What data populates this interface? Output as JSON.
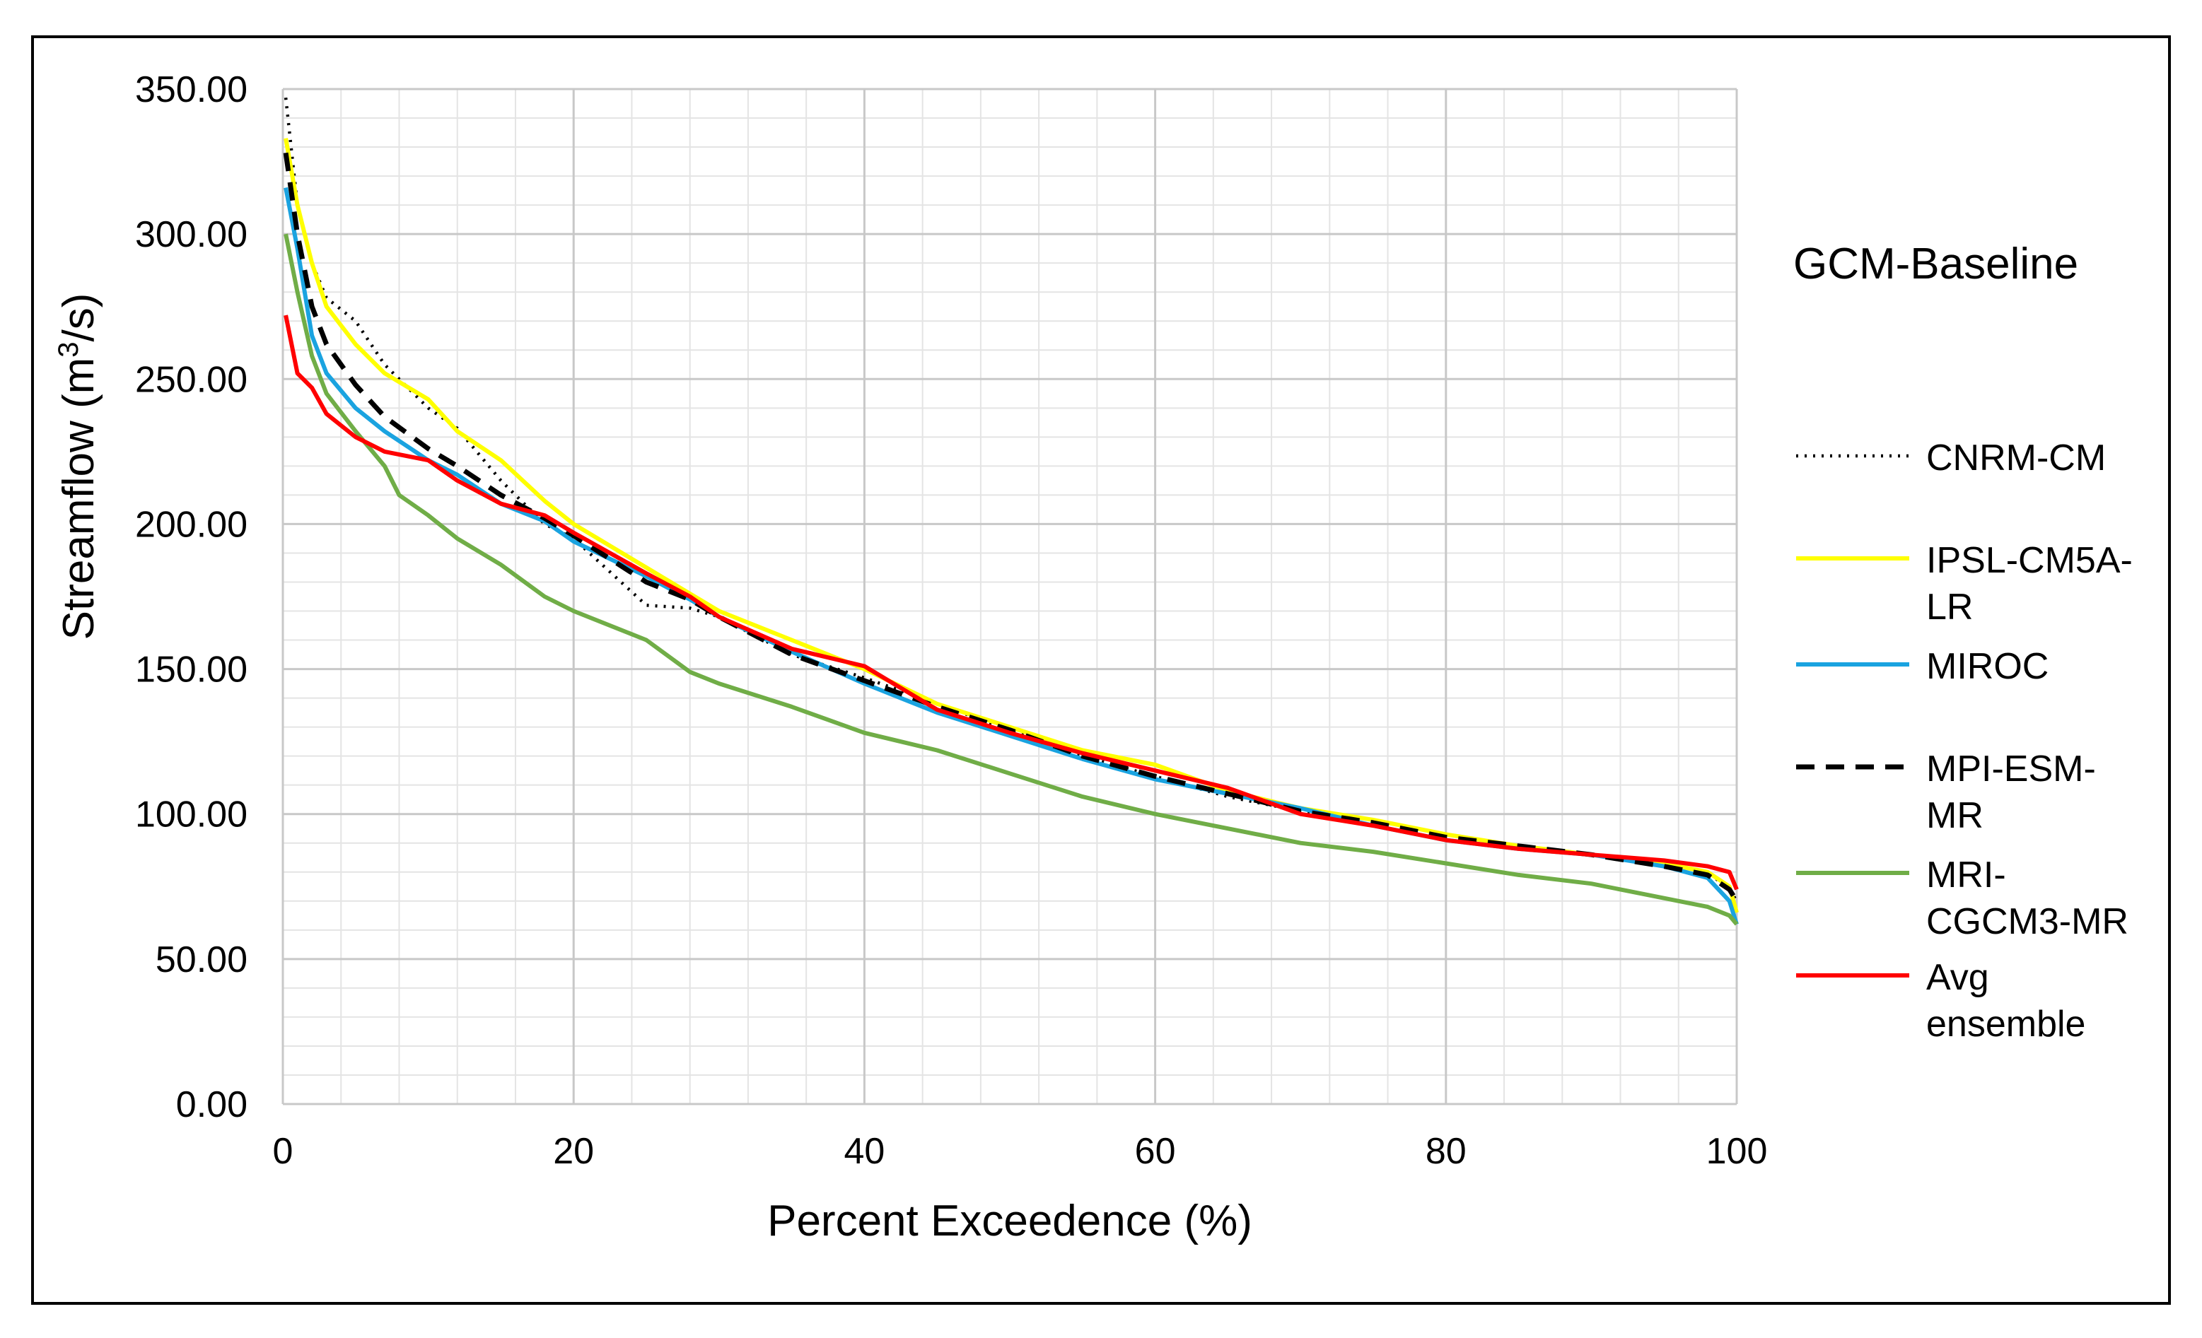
{
  "chart_data": {
    "type": "line",
    "title": "",
    "legend_title": "GCM-Baseline",
    "xlabel": "Percent Exceedence (%)",
    "ylabel_main": "Streamflow (m",
    "ylabel_sup": "3",
    "ylabel_tail": "/s)",
    "xlim": [
      0,
      100
    ],
    "ylim": [
      0,
      350
    ],
    "x_ticks": [
      0,
      20,
      40,
      60,
      80,
      100
    ],
    "x_tick_labels": [
      "0",
      "20",
      "40",
      "60",
      "80",
      "100"
    ],
    "y_ticks": [
      0,
      50,
      100,
      150,
      200,
      250,
      300,
      350
    ],
    "y_tick_labels": [
      "0.00",
      "50.00",
      "100.00",
      "150.00",
      "200.00",
      "250.00",
      "300.00",
      "350.00"
    ],
    "grid": true,
    "legend_position": "right",
    "series": [
      {
        "name": "CNRM-CM",
        "legend_lines": [
          "CNRM-CM"
        ],
        "color": "#000000",
        "dash": "dotted",
        "x": [
          0.2,
          1,
          2,
          3,
          5,
          7,
          10,
          12,
          15,
          18,
          20,
          25,
          28,
          30,
          35,
          40,
          45,
          50,
          55,
          60,
          65,
          70,
          75,
          80,
          85,
          90,
          95,
          98,
          99.5,
          100
        ],
        "values": [
          347,
          310,
          290,
          278,
          270,
          255,
          240,
          233,
          215,
          200,
          195,
          172,
          171,
          168,
          155,
          147,
          138,
          129,
          120,
          113,
          106,
          101,
          96,
          91,
          89,
          86,
          83,
          80,
          74,
          70
        ]
      },
      {
        "name": "IPSL-CM5A-LR",
        "legend_lines": [
          "IPSL-CM5A-",
          "LR"
        ],
        "color": "#ffff00",
        "dash": "solid",
        "x": [
          0.2,
          1,
          2,
          3,
          5,
          7,
          10,
          12,
          15,
          18,
          20,
          25,
          28,
          30,
          35,
          40,
          45,
          50,
          55,
          60,
          65,
          70,
          75,
          80,
          85,
          90,
          95,
          98,
          99.5,
          100
        ],
        "values": [
          333,
          310,
          290,
          275,
          262,
          252,
          243,
          232,
          222,
          208,
          200,
          185,
          176,
          170,
          160,
          150,
          138,
          130,
          122,
          117,
          108,
          102,
          98,
          93,
          89,
          86,
          83,
          80,
          75,
          66
        ]
      },
      {
        "name": "MIROC",
        "legend_lines": [
          "MIROC"
        ],
        "color": "#1aa3e0",
        "dash": "solid",
        "x": [
          0.2,
          1,
          2,
          3,
          5,
          7,
          10,
          12,
          15,
          18,
          20,
          25,
          28,
          30,
          35,
          40,
          45,
          50,
          55,
          60,
          65,
          70,
          75,
          80,
          85,
          90,
          95,
          98,
          99.5,
          100
        ],
        "values": [
          316,
          295,
          265,
          252,
          240,
          232,
          222,
          217,
          207,
          201,
          194,
          182,
          174,
          168,
          156,
          145,
          135,
          127,
          119,
          112,
          107,
          102,
          96,
          91,
          88,
          86,
          82,
          78,
          70,
          62
        ]
      },
      {
        "name": "MPI-ESM-MR",
        "legend_lines": [
          "MPI-ESM-",
          "MR"
        ],
        "color": "#000000",
        "dash": "dashed",
        "x": [
          0.2,
          1,
          2,
          3,
          5,
          7,
          10,
          12,
          15,
          18,
          20,
          25,
          28,
          30,
          35,
          40,
          45,
          50,
          55,
          60,
          65,
          70,
          75,
          80,
          85,
          90,
          95,
          98,
          99.5,
          100
        ],
        "values": [
          328,
          300,
          275,
          262,
          248,
          237,
          226,
          220,
          210,
          202,
          196,
          180,
          174,
          168,
          155,
          146,
          137,
          129,
          120,
          113,
          107,
          101,
          97,
          92,
          89,
          86,
          82,
          79,
          74,
          70
        ]
      },
      {
        "name": "MRI-CGCM3-MR",
        "legend_lines": [
          "MRI-",
          "CGCM3-MR"
        ],
        "color": "#70ad47",
        "dash": "solid",
        "x": [
          0.2,
          1,
          2,
          3,
          5,
          7,
          8,
          10,
          12,
          15,
          18,
          20,
          25,
          28,
          30,
          35,
          40,
          45,
          50,
          55,
          60,
          65,
          70,
          75,
          80,
          85,
          90,
          95,
          98,
          99.5,
          100
        ],
        "values": [
          300,
          280,
          258,
          245,
          232,
          220,
          210,
          203,
          195,
          186,
          175,
          170,
          160,
          149,
          145,
          137,
          128,
          122,
          114,
          106,
          100,
          95,
          90,
          87,
          83,
          79,
          76,
          71,
          68,
          65,
          62
        ]
      },
      {
        "name": "Avg ensemble",
        "legend_lines": [
          "Avg",
          "ensemble"
        ],
        "color": "#ff0000",
        "dash": "solid",
        "x": [
          0.2,
          1,
          2,
          3,
          5,
          7,
          10,
          12,
          15,
          18,
          20,
          25,
          28,
          30,
          35,
          40,
          45,
          50,
          55,
          60,
          65,
          70,
          75,
          80,
          85,
          90,
          95,
          98,
          99.5,
          100
        ],
        "values": [
          272,
          252,
          247,
          238,
          230,
          225,
          222,
          215,
          207,
          203,
          197,
          183,
          175,
          168,
          157,
          151,
          136,
          128,
          121,
          115,
          109,
          100,
          96,
          91,
          88,
          86,
          84,
          82,
          80,
          74
        ]
      }
    ]
  }
}
